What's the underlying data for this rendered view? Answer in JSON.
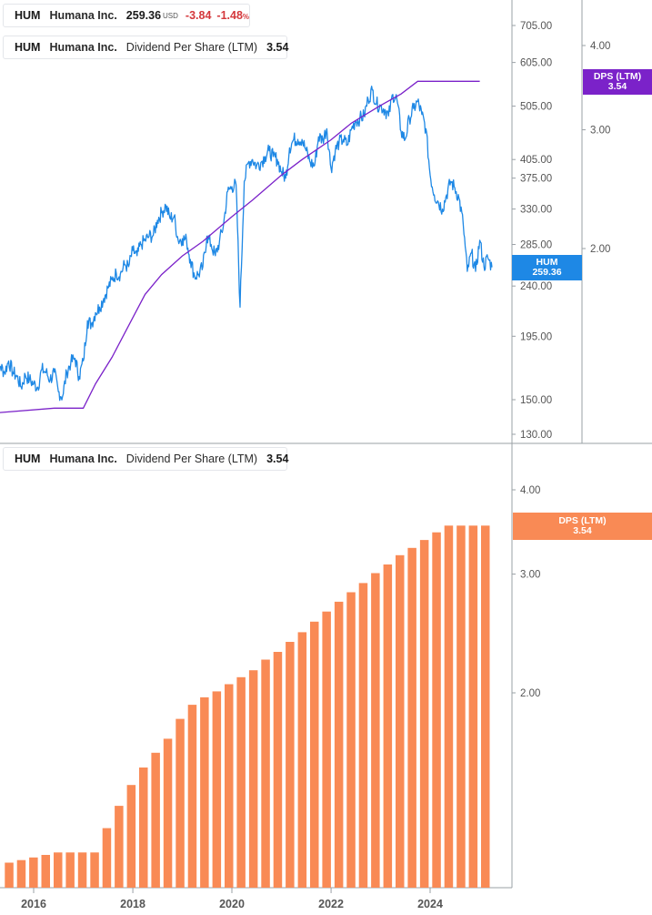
{
  "legend_price": {
    "ticker": "HUM",
    "company": "Humana Inc.",
    "price": "259.36",
    "currency": "USD",
    "change": "-3.84",
    "change_pct": "-1.48",
    "pct_symbol": "%",
    "color": "#1e88e5"
  },
  "legend_dps_top": {
    "ticker": "HUM",
    "company": "Humana Inc.",
    "metric": "Dividend Per Share (LTM)",
    "value": "3.54",
    "color": "#7b22c9"
  },
  "legend_dps_bottom": {
    "ticker": "HUM",
    "company": "Humana Inc.",
    "metric": "Dividend Per Share (LTM)",
    "value": "3.54",
    "color": "#f98a55"
  },
  "tags": {
    "price_tag": {
      "line1": "HUM",
      "line2": "259.36",
      "color": "#1e88e5"
    },
    "dps_top_tag": {
      "line1": "DPS (LTM)",
      "line2": "3.54",
      "color": "#7b22c9"
    },
    "dps_bottom_tag": {
      "line1": "DPS (LTM)",
      "line2": "3.54",
      "color": "#f98a55"
    }
  },
  "chart_data": [
    {
      "type": "line",
      "scale": "log",
      "series": [
        {
          "axis": "price",
          "color": "#1e88e5",
          "points": [
            [
              "2015-03-01",
              200
            ],
            [
              "2015-04-01",
              178
            ],
            [
              "2015-05-01",
              172
            ],
            [
              "2015-06-01",
              168
            ],
            [
              "2015-07-01",
              176
            ],
            [
              "2015-08-01",
              168
            ],
            [
              "2015-09-01",
              165
            ],
            [
              "2015-10-01",
              158
            ],
            [
              "2015-11-01",
              166
            ],
            [
              "2015-12-01",
              163
            ],
            [
              "2016-01-01",
              160
            ],
            [
              "2016-02-01",
              158
            ],
            [
              "2016-03-01",
              170
            ],
            [
              "2016-04-01",
              168
            ],
            [
              "2016-05-01",
              163
            ],
            [
              "2016-06-01",
              168
            ],
            [
              "2016-07-01",
              155
            ],
            [
              "2016-08-01",
              152
            ],
            [
              "2016-09-01",
              168
            ],
            [
              "2016-10-01",
              175
            ],
            [
              "2016-11-01",
              178
            ],
            [
              "2016-12-01",
              165
            ],
            [
              "2017-01-01",
              176
            ],
            [
              "2017-02-01",
              208
            ],
            [
              "2017-03-01",
              205
            ],
            [
              "2017-04-01",
              215
            ],
            [
              "2017-05-01",
              220
            ],
            [
              "2017-06-01",
              228
            ],
            [
              "2017-07-01",
              238
            ],
            [
              "2017-08-01",
              246
            ],
            [
              "2017-09-01",
              253
            ],
            [
              "2017-10-01",
              252
            ],
            [
              "2017-11-01",
              262
            ],
            [
              "2017-12-01",
              260
            ],
            [
              "2018-01-01",
              278
            ],
            [
              "2018-02-01",
              272
            ],
            [
              "2018-03-01",
              285
            ],
            [
              "2018-04-01",
              290
            ],
            [
              "2018-05-01",
              295
            ],
            [
              "2018-06-01",
              296
            ],
            [
              "2018-07-01",
              315
            ],
            [
              "2018-08-01",
              325
            ],
            [
              "2018-09-01",
              335
            ],
            [
              "2018-10-01",
              318
            ],
            [
              "2018-11-01",
              320
            ],
            [
              "2018-12-01",
              290
            ],
            [
              "2019-01-01",
              292
            ],
            [
              "2019-02-01",
              290
            ],
            [
              "2019-03-01",
              268
            ],
            [
              "2019-04-01",
              250
            ],
            [
              "2019-05-01",
              252
            ],
            [
              "2019-06-01",
              260
            ],
            [
              "2019-07-01",
              295
            ],
            [
              "2019-08-01",
              285
            ],
            [
              "2019-09-01",
              272
            ],
            [
              "2019-10-01",
              288
            ],
            [
              "2019-11-01",
              310
            ],
            [
              "2019-12-01",
              355
            ],
            [
              "2020-01-01",
              362
            ],
            [
              "2020-02-01",
              365
            ],
            [
              "2020-03-01",
              220
            ],
            [
              "2020-04-01",
              370
            ],
            [
              "2020-05-01",
              400
            ],
            [
              "2020-06-01",
              405
            ],
            [
              "2020-07-01",
              395
            ],
            [
              "2020-08-01",
              400
            ],
            [
              "2020-09-01",
              410
            ],
            [
              "2020-10-01",
              420
            ],
            [
              "2020-11-01",
              410
            ],
            [
              "2020-12-01",
              405
            ],
            [
              "2021-01-01",
              385
            ],
            [
              "2021-02-01",
              375
            ],
            [
              "2021-03-01",
              425
            ],
            [
              "2021-04-01",
              440
            ],
            [
              "2021-05-01",
              440
            ],
            [
              "2021-06-01",
              440
            ],
            [
              "2021-07-01",
              420
            ],
            [
              "2021-08-01",
              400
            ],
            [
              "2021-09-01",
              395
            ],
            [
              "2021-10-01",
              445
            ],
            [
              "2021-11-01",
              440
            ],
            [
              "2021-12-01",
              460
            ],
            [
              "2022-01-01",
              390
            ],
            [
              "2022-02-01",
              420
            ],
            [
              "2022-03-01",
              435
            ],
            [
              "2022-04-01",
              440
            ],
            [
              "2022-05-01",
              430
            ],
            [
              "2022-06-01",
              460
            ],
            [
              "2022-07-01",
              475
            ],
            [
              "2022-08-01",
              480
            ],
            [
              "2022-09-01",
              485
            ],
            [
              "2022-10-01",
              520
            ],
            [
              "2022-11-01",
              540
            ],
            [
              "2022-12-01",
              510
            ],
            [
              "2023-01-01",
              505
            ],
            [
              "2023-02-01",
              498
            ],
            [
              "2023-03-01",
              485
            ],
            [
              "2023-04-01",
              530
            ],
            [
              "2023-05-01",
              520
            ],
            [
              "2023-06-01",
              455
            ],
            [
              "2023-07-01",
              440
            ],
            [
              "2023-08-01",
              480
            ],
            [
              "2023-09-01",
              500
            ],
            [
              "2023-10-01",
              515
            ],
            [
              "2023-11-01",
              488
            ],
            [
              "2023-12-01",
              460
            ],
            [
              "2024-01-01",
              380
            ],
            [
              "2024-02-01",
              350
            ],
            [
              "2024-03-01",
              340
            ],
            [
              "2024-04-01",
              330
            ],
            [
              "2024-05-01",
              350
            ],
            [
              "2024-06-01",
              370
            ],
            [
              "2024-07-01",
              360
            ],
            [
              "2024-08-01",
              345
            ],
            [
              "2024-09-01",
              310
            ],
            [
              "2024-10-01",
              255
            ],
            [
              "2024-11-01",
              275
            ],
            [
              "2024-12-01",
              255
            ],
            [
              "2025-01-01",
              290
            ],
            [
              "2025-02-01",
              260
            ],
            [
              "2025-03-01",
              270
            ],
            [
              "2025-04-01",
              259.36
            ]
          ]
        },
        {
          "axis": "dps",
          "color": "#7b22c9",
          "points": [
            [
              "2015-03-01",
              1.14
            ],
            [
              "2016-06-01",
              1.16
            ],
            [
              "2017-01-01",
              1.16
            ],
            [
              "2017-04-01",
              1.26
            ],
            [
              "2017-08-01",
              1.38
            ],
            [
              "2018-01-01",
              1.58
            ],
            [
              "2018-04-01",
              1.71
            ],
            [
              "2018-08-01",
              1.83
            ],
            [
              "2019-01-01",
              1.95
            ],
            [
              "2019-06-01",
              2.05
            ],
            [
              "2020-01-01",
              2.23
            ],
            [
              "2020-06-01",
              2.36
            ],
            [
              "2021-01-01",
              2.57
            ],
            [
              "2021-06-01",
              2.71
            ],
            [
              "2022-01-01",
              2.9
            ],
            [
              "2022-06-01",
              3.07
            ],
            [
              "2023-01-01",
              3.26
            ],
            [
              "2023-06-01",
              3.39
            ],
            [
              "2023-10-01",
              3.54
            ],
            [
              "2025-01-01",
              3.54
            ]
          ]
        }
      ],
      "axes": {
        "price_ticks": [
          705.0,
          605.0,
          505.0,
          405.0,
          375.0,
          330.0,
          285.0,
          240.0,
          195.0,
          150.0,
          130.0
        ],
        "dps_ticks": [
          4.0,
          3.0,
          2.0
        ]
      }
    },
    {
      "type": "bar",
      "scale": "log",
      "color": "#f98a55",
      "categories": [
        "2015-Q2",
        "2015-Q3",
        "2015-Q4",
        "2016-Q1",
        "2016-Q2",
        "2016-Q3",
        "2016-Q4",
        "2017-Q1",
        "2017-Q2",
        "2017-Q3",
        "2017-Q4",
        "2018-Q1",
        "2018-Q2",
        "2018-Q3",
        "2018-Q4",
        "2019-Q1",
        "2019-Q2",
        "2019-Q3",
        "2019-Q4",
        "2020-Q1",
        "2020-Q2",
        "2020-Q3",
        "2020-Q4",
        "2021-Q1",
        "2021-Q2",
        "2021-Q3",
        "2021-Q4",
        "2022-Q1",
        "2022-Q2",
        "2022-Q3",
        "2022-Q4",
        "2023-Q1",
        "2023-Q2",
        "2023-Q3",
        "2023-Q4",
        "2024-Q1",
        "2024-Q2",
        "2024-Q3",
        "2024-Q4",
        "2025-Q1"
      ],
      "values": [
        1.12,
        1.13,
        1.14,
        1.15,
        1.16,
        1.16,
        1.16,
        1.16,
        1.26,
        1.36,
        1.46,
        1.55,
        1.63,
        1.71,
        1.83,
        1.92,
        1.97,
        2.01,
        2.06,
        2.11,
        2.16,
        2.24,
        2.3,
        2.38,
        2.46,
        2.55,
        2.64,
        2.73,
        2.82,
        2.91,
        3.01,
        3.1,
        3.2,
        3.28,
        3.37,
        3.46,
        3.54,
        3.54,
        3.54,
        3.54
      ],
      "axes": {
        "dps_ticks": [
          4.0,
          3.0,
          2.0
        ],
        "x_ticks": [
          "2016",
          "2018",
          "2020",
          "2022",
          "2024"
        ]
      }
    }
  ]
}
